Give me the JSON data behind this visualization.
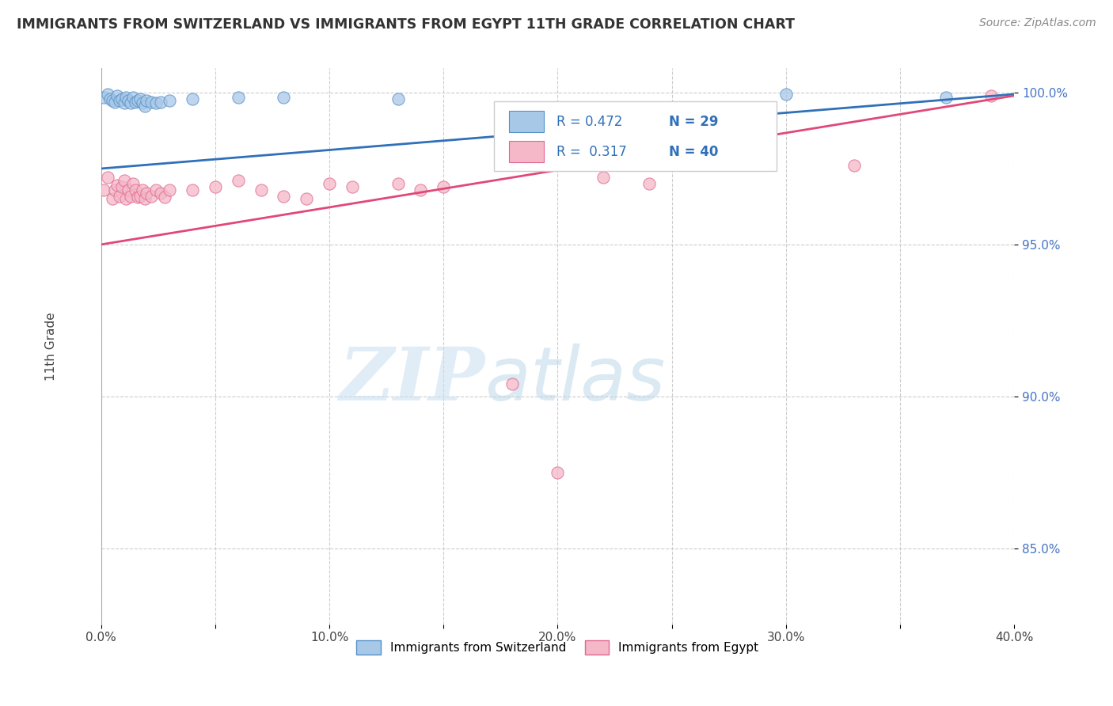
{
  "title": "IMMIGRANTS FROM SWITZERLAND VS IMMIGRANTS FROM EGYPT 11TH GRADE CORRELATION CHART",
  "source": "Source: ZipAtlas.com",
  "ylabel": "11th Grade",
  "xlim": [
    0.0,
    0.4
  ],
  "ylim": [
    0.825,
    1.008
  ],
  "xtick_labels": [
    "0.0%",
    "",
    "10.0%",
    "",
    "20.0%",
    "",
    "30.0%",
    "",
    "40.0%"
  ],
  "xtick_values": [
    0.0,
    0.05,
    0.1,
    0.15,
    0.2,
    0.25,
    0.3,
    0.35,
    0.4
  ],
  "ytick_labels": [
    "100.0%",
    "95.0%",
    "90.0%",
    "85.0%"
  ],
  "ytick_values": [
    1.0,
    0.95,
    0.9,
    0.85
  ],
  "watermark_zip": "ZIP",
  "watermark_atlas": "atlas",
  "legend_blue_label": "Immigrants from Switzerland",
  "legend_pink_label": "Immigrants from Egypt",
  "R_blue": 0.472,
  "N_blue": 29,
  "R_pink": 0.317,
  "N_pink": 40,
  "blue_fill": "#a8c8e8",
  "pink_fill": "#f4b8c8",
  "blue_edge": "#5590c8",
  "pink_edge": "#e06890",
  "blue_line_color": "#3070b8",
  "pink_line_color": "#e04878",
  "blue_scatter": [
    [
      0.001,
      0.9985
    ],
    [
      0.003,
      0.9995
    ],
    [
      0.004,
      0.998
    ],
    [
      0.005,
      0.9975
    ],
    [
      0.006,
      0.997
    ],
    [
      0.007,
      0.999
    ],
    [
      0.008,
      0.9975
    ],
    [
      0.009,
      0.998
    ],
    [
      0.01,
      0.9965
    ],
    [
      0.011,
      0.9985
    ],
    [
      0.012,
      0.9975
    ],
    [
      0.013,
      0.9965
    ],
    [
      0.014,
      0.9985
    ],
    [
      0.015,
      0.997
    ],
    [
      0.016,
      0.9975
    ],
    [
      0.017,
      0.998
    ],
    [
      0.018,
      0.9965
    ],
    [
      0.019,
      0.9955
    ],
    [
      0.02,
      0.9975
    ],
    [
      0.022,
      0.997
    ],
    [
      0.024,
      0.9965
    ],
    [
      0.026,
      0.997
    ],
    [
      0.03,
      0.9975
    ],
    [
      0.04,
      0.998
    ],
    [
      0.06,
      0.9985
    ],
    [
      0.08,
      0.9985
    ],
    [
      0.13,
      0.998
    ],
    [
      0.3,
      0.9995
    ],
    [
      0.37,
      0.9985
    ]
  ],
  "pink_scatter": [
    [
      0.001,
      0.968
    ],
    [
      0.003,
      0.972
    ],
    [
      0.005,
      0.965
    ],
    [
      0.006,
      0.968
    ],
    [
      0.007,
      0.9695
    ],
    [
      0.008,
      0.966
    ],
    [
      0.009,
      0.969
    ],
    [
      0.01,
      0.971
    ],
    [
      0.011,
      0.965
    ],
    [
      0.012,
      0.968
    ],
    [
      0.013,
      0.966
    ],
    [
      0.014,
      0.97
    ],
    [
      0.015,
      0.968
    ],
    [
      0.016,
      0.9655
    ],
    [
      0.017,
      0.966
    ],
    [
      0.018,
      0.968
    ],
    [
      0.019,
      0.965
    ],
    [
      0.02,
      0.967
    ],
    [
      0.022,
      0.966
    ],
    [
      0.024,
      0.968
    ],
    [
      0.026,
      0.967
    ],
    [
      0.028,
      0.9655
    ],
    [
      0.03,
      0.968
    ],
    [
      0.04,
      0.968
    ],
    [
      0.05,
      0.969
    ],
    [
      0.06,
      0.971
    ],
    [
      0.07,
      0.968
    ],
    [
      0.08,
      0.966
    ],
    [
      0.09,
      0.965
    ],
    [
      0.1,
      0.97
    ],
    [
      0.11,
      0.969
    ],
    [
      0.13,
      0.97
    ],
    [
      0.14,
      0.968
    ],
    [
      0.15,
      0.969
    ],
    [
      0.18,
      0.904
    ],
    [
      0.2,
      0.875
    ],
    [
      0.22,
      0.972
    ],
    [
      0.24,
      0.97
    ],
    [
      0.33,
      0.976
    ],
    [
      0.39,
      0.999
    ]
  ],
  "blue_line_x0": 0.0,
  "blue_line_x1": 0.4,
  "blue_line_y0": 0.975,
  "blue_line_y1": 0.9995,
  "pink_line_x0": 0.0,
  "pink_line_x1": 0.4,
  "pink_line_y0": 0.95,
  "pink_line_y1": 0.999
}
